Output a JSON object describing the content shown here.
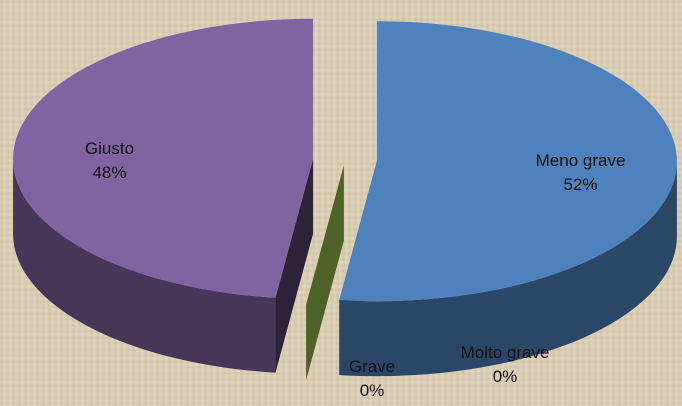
{
  "chart_data": {
    "type": "pie3d",
    "categories": [
      "Meno grave",
      "Molto grave",
      "Grave",
      "Giusto"
    ],
    "values": [
      52,
      0,
      0,
      48
    ],
    "value_labels": [
      "52%",
      "0%",
      "0%",
      "48%"
    ],
    "colors": [
      "#4f81bd",
      "#c0504d",
      "#4f6228",
      "#8064a2"
    ]
  }
}
